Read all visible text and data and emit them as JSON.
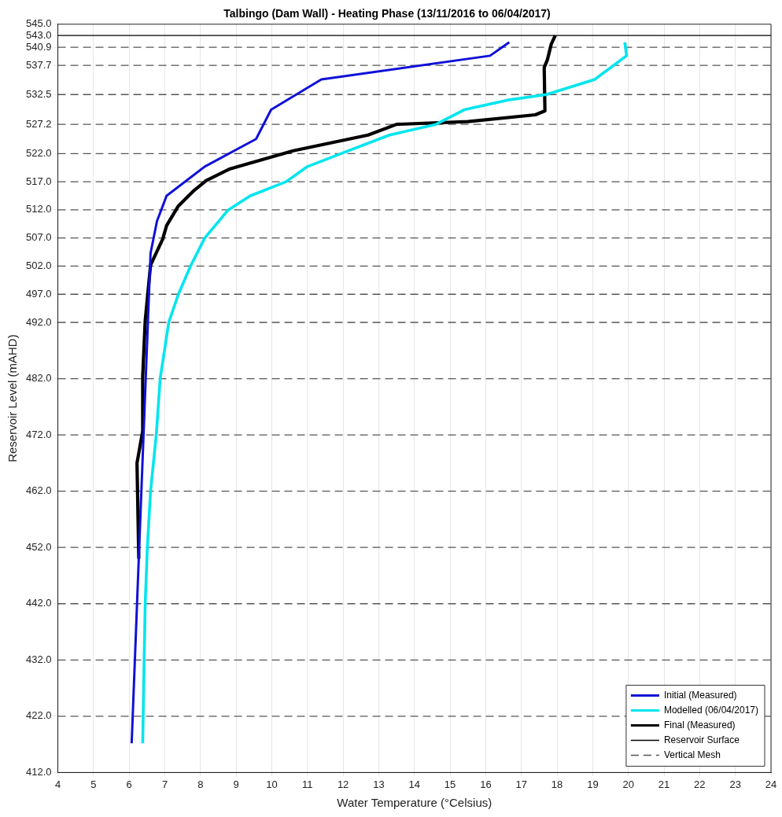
{
  "chart_data": {
    "type": "line",
    "title": "Talbingo (Dam Wall) - Heating Phase (13/11/2016 to 06/04/2017)",
    "xlabel": "Water Temperature (°Celsius)",
    "ylabel": "Reservoir Level (mAHD)",
    "xlim": [
      4,
      24
    ],
    "xticks": [
      4,
      5,
      6,
      7,
      8,
      9,
      10,
      11,
      12,
      13,
      14,
      15,
      16,
      17,
      18,
      19,
      20,
      21,
      22,
      23,
      24
    ],
    "ylim": [
      412,
      545
    ],
    "yticks": [
      {
        "value": 412,
        "label": "412.0"
      },
      {
        "value": 422,
        "label": "422.0"
      },
      {
        "value": 432,
        "label": "432.0"
      },
      {
        "value": 442,
        "label": "442.0"
      },
      {
        "value": 452,
        "label": "452.0"
      },
      {
        "value": 462,
        "label": "462.0"
      },
      {
        "value": 472,
        "label": "472.0"
      },
      {
        "value": 482,
        "label": "482.0"
      },
      {
        "value": 492,
        "label": "492.0"
      },
      {
        "value": 497,
        "label": "497.0"
      },
      {
        "value": 502,
        "label": "502.0"
      },
      {
        "value": 507,
        "label": "507.0"
      },
      {
        "value": 512,
        "label": "512.0"
      },
      {
        "value": 517,
        "label": "517.0"
      },
      {
        "value": 522,
        "label": "522.0"
      },
      {
        "value": 527.2,
        "label": "527.2"
      },
      {
        "value": 532.5,
        "label": "532.5"
      },
      {
        "value": 537.7,
        "label": "537.7"
      },
      {
        "value": 540.9,
        "label": "540.9"
      },
      {
        "value": 543,
        "label": "543.0"
      },
      {
        "value": 545,
        "label": "545.0"
      }
    ],
    "grid": "x",
    "legend": "bottom right",
    "marker": "none",
    "line_style": "solid",
    "series": [
      {
        "name": "Initial (Measured)",
        "color": "#1010d8",
        "x": [
          6.07,
          6.6,
          6.78,
          7.05,
          8.12,
          9.56,
          9.98,
          11.39,
          16.12,
          16.66
        ],
        "values": [
          417.2,
          504.3,
          510,
          514.5,
          519.7,
          524.6,
          529.8,
          535.2,
          539.4,
          541.8
        ]
      },
      {
        "name": "Modelled (06/04/2017)",
        "color": "#00e5ee",
        "x": [
          6.38,
          6.42,
          6.45,
          6.51,
          6.6,
          6.76,
          6.87,
          7.11,
          7.38,
          7.72,
          8.12,
          8.78,
          9.4,
          10.4,
          11.0,
          11.94,
          13.3,
          14.6,
          15.4,
          16.6,
          17.7,
          19.06,
          19.95,
          19.9
        ],
        "values": [
          417.2,
          432,
          442,
          452,
          462,
          472,
          482,
          492,
          497,
          502,
          507,
          512,
          514.5,
          517,
          519.7,
          522,
          525.3,
          527.2,
          529.8,
          531.5,
          532.5,
          535.2,
          539.4,
          541.8
        ]
      },
      {
        "name": "Final (Measured)",
        "color": "#000000",
        "x": [
          6.27,
          6.22,
          6.38,
          6.38,
          6.45,
          6.6,
          6.94,
          7.05,
          7.38,
          7.83,
          8.16,
          8.83,
          10.6,
          12.7,
          13.5,
          15.5,
          17.39,
          17.66,
          17.64,
          17.73,
          17.84,
          17.95
        ],
        "values": [
          450,
          467,
          472.7,
          482.5,
          492.3,
          502.2,
          506.8,
          509.2,
          512.7,
          515.5,
          517.2,
          519.3,
          522.5,
          525.3,
          527.2,
          527.7,
          528.9,
          529.6,
          537.3,
          538.7,
          541.5,
          543
        ]
      }
    ],
    "ref_lines": [
      {
        "axis": "y",
        "value": 543,
        "label": "Reservoir Surface",
        "color": "#000000",
        "line_style": "solid"
      },
      {
        "axis": "y",
        "value": 540.9,
        "label": "Vertical Mesh",
        "color": "#555555",
        "line_style": "dashed"
      },
      {
        "axis": "y",
        "value": 537.7,
        "color": "#555555",
        "line_style": "dashed"
      },
      {
        "axis": "y",
        "value": 532.5,
        "color": "#555555",
        "line_style": "dashed"
      },
      {
        "axis": "y",
        "value": 527.2,
        "color": "#555555",
        "line_style": "dashed"
      },
      {
        "axis": "y",
        "value": 522,
        "color": "#555555",
        "line_style": "dashed"
      },
      {
        "axis": "y",
        "value": 517,
        "color": "#555555",
        "line_style": "dashed"
      },
      {
        "axis": "y",
        "value": 512,
        "color": "#555555",
        "line_style": "dashed"
      },
      {
        "axis": "y",
        "value": 507,
        "color": "#555555",
        "line_style": "dashed"
      },
      {
        "axis": "y",
        "value": 502,
        "color": "#555555",
        "line_style": "dashed"
      },
      {
        "axis": "y",
        "value": 497,
        "color": "#555555",
        "line_style": "dashed"
      },
      {
        "axis": "y",
        "value": 492,
        "color": "#555555",
        "line_style": "dashed"
      },
      {
        "axis": "y",
        "value": 482,
        "color": "#555555",
        "line_style": "dashed"
      },
      {
        "axis": "y",
        "value": 472,
        "color": "#555555",
        "line_style": "dashed"
      },
      {
        "axis": "y",
        "value": 462,
        "color": "#555555",
        "line_style": "dashed"
      },
      {
        "axis": "y",
        "value": 452,
        "color": "#555555",
        "line_style": "dashed"
      },
      {
        "axis": "y",
        "value": 442,
        "color": "#555555",
        "line_style": "dashed"
      },
      {
        "axis": "y",
        "value": 432,
        "color": "#555555",
        "line_style": "dashed"
      },
      {
        "axis": "y",
        "value": 422,
        "color": "#555555",
        "line_style": "dashed"
      }
    ]
  }
}
